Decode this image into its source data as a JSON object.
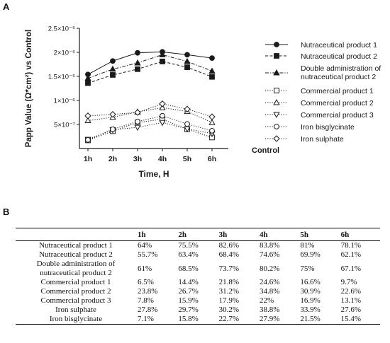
{
  "panels": {
    "a": "A",
    "b": "B"
  },
  "chart_data": {
    "type": "line",
    "xlabel": "Time, H",
    "ylabel": "Papp Value (Ω*cm²) vs Control",
    "x_end_label": "Control",
    "categories": [
      "1h",
      "2h",
      "3h",
      "4h",
      "5h",
      "6h"
    ],
    "ylim": [
      0,
      2.5e-06
    ],
    "yticks": [
      {
        "value": 5e-07,
        "label": "5×10⁻⁷"
      },
      {
        "value": 1e-06,
        "label": "1×10⁻⁶"
      },
      {
        "value": 1.5e-06,
        "label": "1.5×10⁻⁶"
      },
      {
        "value": 2e-06,
        "label": "2×10⁻⁶"
      },
      {
        "value": 2.5e-06,
        "label": "2.5×10⁻⁶"
      }
    ],
    "legend_position": "right",
    "series": [
      {
        "name": "Nutraceutical product 1",
        "marker": "circle-filled",
        "dash": "solid",
        "values": [
          1.54e-06,
          1.82e-06,
          1.99e-06,
          2.01e-06,
          1.95e-06,
          1.88e-06
        ]
      },
      {
        "name": "Nutraceutical product 2",
        "marker": "square-filled",
        "dash": "dashed",
        "values": [
          1.36e-06,
          1.53e-06,
          1.65e-06,
          1.81e-06,
          1.69e-06,
          1.49e-06
        ]
      },
      {
        "name": "Double administration of nutraceutical product 2",
        "marker": "triangle-filled",
        "dash": "dashdot",
        "values": [
          1.46e-06,
          1.65e-06,
          1.78e-06,
          1.95e-06,
          1.81e-06,
          1.61e-06
        ]
      },
      {
        "name": "Commercial product 1",
        "marker": "square-open",
        "dash": "dotted",
        "values": [
          1.7e-07,
          3.6e-07,
          5.4e-07,
          6.1e-07,
          4e-07,
          2.3e-07
        ]
      },
      {
        "name": "Commercial product 2",
        "marker": "triangle-open",
        "dash": "dotted",
        "values": [
          5.8e-07,
          6.5e-07,
          7.6e-07,
          8.5e-07,
          7.7e-07,
          5.4e-07
        ]
      },
      {
        "name": "Commercial product 3",
        "marker": "triangle-down-open",
        "dash": "dotted",
        "values": [
          1.9e-07,
          3.9e-07,
          4.4e-07,
          5.4e-07,
          4.1e-07,
          3.1e-07
        ]
      },
      {
        "name": "Iron bisglycinate",
        "marker": "circle-open",
        "dash": "dotted",
        "values": [
          1.8e-07,
          4e-07,
          5.6e-07,
          6.8e-07,
          5.1e-07,
          3.7e-07
        ]
      },
      {
        "name": "Iron sulphate",
        "marker": "diamond-open",
        "dash": "dotted",
        "values": [
          6.8e-07,
          7.1e-07,
          7.5e-07,
          9.3e-07,
          8.2e-07,
          6.6e-07
        ]
      }
    ]
  },
  "table": {
    "headers": [
      "",
      "1h",
      "2h",
      "3h",
      "4h",
      "5h",
      "6h"
    ],
    "rows": [
      {
        "name_lines": [
          "Nutraceutical product 1"
        ],
        "cells": [
          "64%",
          "75.5%",
          "82.6%",
          "83.8%",
          "81%",
          "78.1%"
        ]
      },
      {
        "name_lines": [
          "Nutraceutical product 2"
        ],
        "cells": [
          "55.7%",
          "63.4%",
          "68.4%",
          "74.6%",
          "69.9%",
          "62.1%"
        ]
      },
      {
        "name_lines": [
          "Double administration of",
          "nutraceutical product 2"
        ],
        "cells": [
          "61%",
          "68.5%",
          "73.7%",
          "80.2%",
          "75%",
          "67.1%"
        ]
      },
      {
        "name_lines": [
          "Commercial product 1"
        ],
        "cells": [
          "6.5%",
          "14.4%",
          "21.8%",
          "24.6%",
          "16.6%",
          "9.7%"
        ]
      },
      {
        "name_lines": [
          "Commercial product 2"
        ],
        "cells": [
          "23.8%",
          "26.7%",
          "31.2%",
          "34.8%",
          "30.9%",
          "22.6%"
        ]
      },
      {
        "name_lines": [
          "Commercial product 3"
        ],
        "cells": [
          "7.8%",
          "15.9%",
          "17.9%",
          "22%",
          "16.9%",
          "13.1%"
        ]
      },
      {
        "name_lines": [
          "Iron sulphate"
        ],
        "cells": [
          "27.8%",
          "29.7%",
          "30.2%",
          "38.8%",
          "33.9%",
          "27.6%"
        ]
      },
      {
        "name_lines": [
          "Iron bisglycinate"
        ],
        "cells": [
          "7.1%",
          "15.8%",
          "22.7%",
          "27.9%",
          "21.5%",
          "15.4%"
        ]
      }
    ]
  },
  "colors": {
    "ink": "#1a1a1a",
    "marker_open": "#ffffff"
  }
}
